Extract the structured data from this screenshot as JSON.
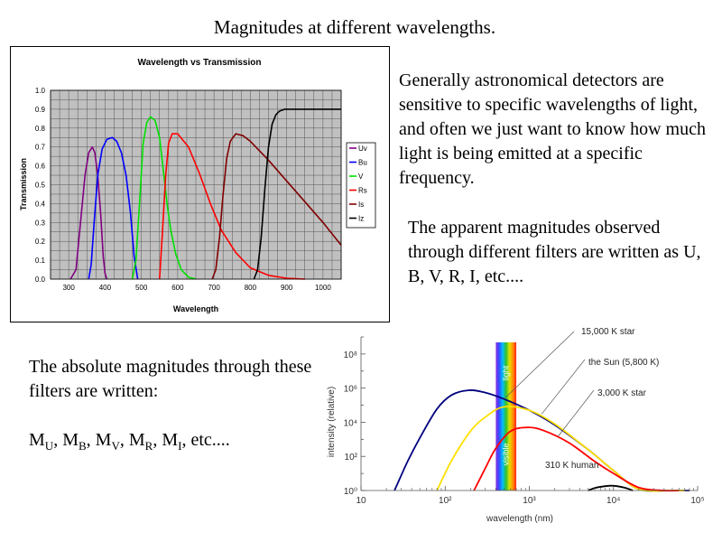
{
  "slide": {
    "title": "Magnitudes at different wavelengths.",
    "paragraph1": "Generally astronomical detectors are sensitive to specific wavelengths of light, and often we just want to know how much light is being emitted at a specific frequency.",
    "paragraph2": "The apparent magnitudes observed through different filters are written as U, B, V, R, I, etc....",
    "paragraph3": "The absolute magnitudes through these filters are written:",
    "magnitudes": {
      "M": "M",
      "subscripts": [
        "U",
        "B",
        "V",
        "R",
        "I"
      ],
      "sep": ",",
      "etc": "etc...."
    }
  },
  "colors": {
    "plot_bg": "#c0c0c0",
    "grid": "#555555",
    "U": "#800080",
    "B": "#0000ff",
    "V": "#00e000",
    "R": "#ff0000",
    "I": "#800000",
    "Z": "#000000",
    "star15000": "#000080",
    "sun": "#ffe000",
    "star3000": "#ff0000",
    "human": "#000000"
  },
  "chart_data": [
    {
      "type": "line",
      "title": "Wavelength vs Transmission",
      "xlabel": "Wavelength",
      "ylabel": "Transmission",
      "xlim": [
        250,
        1050
      ],
      "ylim": [
        0,
        1.0
      ],
      "xticks": [
        300,
        400,
        500,
        600,
        700,
        800,
        900,
        1000
      ],
      "xtick_labels": [
        "300",
        "400",
        "500",
        "600",
        "700",
        "800",
        "900",
        "1000"
      ],
      "yticks": [
        0,
        0.1,
        0.2,
        0.3,
        0.4,
        0.5,
        0.6,
        0.7,
        0.8,
        0.9,
        1.0
      ],
      "ytick_labels": [
        "0.0",
        "0.1",
        "0.2",
        "0.3",
        "0.4",
        "0.5",
        "0.6",
        "0.7",
        "0.8",
        "0.9",
        "1.0"
      ],
      "grid": true,
      "legend": "right",
      "series": [
        {
          "name": "Uv",
          "color": "#800080",
          "x": [
            305,
            320,
            335,
            345,
            355,
            365,
            372,
            380,
            388,
            395,
            400,
            405
          ],
          "y": [
            0,
            0.05,
            0.35,
            0.55,
            0.67,
            0.7,
            0.67,
            0.55,
            0.35,
            0.12,
            0.03,
            0
          ]
        },
        {
          "name": "Bu",
          "color": "#0000ff",
          "x": [
            355,
            362,
            370,
            380,
            392,
            405,
            420,
            432,
            445,
            458,
            470,
            480,
            490
          ],
          "y": [
            0,
            0.08,
            0.3,
            0.55,
            0.69,
            0.74,
            0.75,
            0.73,
            0.67,
            0.55,
            0.35,
            0.12,
            0
          ]
        },
        {
          "name": "V",
          "color": "#00e000",
          "x": [
            475,
            485,
            495,
            505,
            515,
            525,
            538,
            550,
            562,
            572,
            582,
            595,
            610,
            630,
            650
          ],
          "y": [
            0,
            0.1,
            0.4,
            0.72,
            0.83,
            0.86,
            0.84,
            0.75,
            0.55,
            0.38,
            0.25,
            0.13,
            0.05,
            0.01,
            0
          ]
        },
        {
          "name": "Rs",
          "color": "#ff0000",
          "x": [
            550,
            558,
            567,
            575,
            585,
            600,
            630,
            660,
            690,
            720,
            760,
            800,
            850,
            900,
            950
          ],
          "y": [
            0,
            0.25,
            0.55,
            0.72,
            0.77,
            0.77,
            0.7,
            0.56,
            0.4,
            0.26,
            0.14,
            0.06,
            0.02,
            0.005,
            0
          ]
        },
        {
          "name": "Is",
          "color": "#800000",
          "x": [
            695,
            705,
            715,
            725,
            735,
            745,
            760,
            780,
            800,
            850,
            900,
            950,
            1000,
            1050
          ],
          "y": [
            0,
            0.05,
            0.22,
            0.45,
            0.64,
            0.73,
            0.77,
            0.76,
            0.73,
            0.63,
            0.52,
            0.41,
            0.3,
            0.18
          ]
        },
        {
          "name": "Iz",
          "color": "#000000",
          "x": [
            810,
            820,
            830,
            840,
            850,
            860,
            870,
            880,
            895,
            920,
            960,
            1000,
            1050
          ],
          "y": [
            0,
            0.05,
            0.22,
            0.48,
            0.7,
            0.82,
            0.87,
            0.89,
            0.9,
            0.9,
            0.9,
            0.9,
            0.9
          ]
        }
      ]
    },
    {
      "type": "line",
      "xlabel": "wavelength (nm)",
      "ylabel": "intensity (relative)",
      "xscale": "log",
      "yscale": "log",
      "xlim": [
        10,
        100000
      ],
      "ylim": [
        1,
        1000000000
      ],
      "xtick_labels": [
        "10",
        "10²",
        "10³",
        "10⁴",
        "10⁵"
      ],
      "ytick_labels": [
        "10⁰",
        "10²",
        "10⁴",
        "10⁶",
        "10⁸"
      ],
      "band": {
        "label_top": "light",
        "label_bottom": "visible",
        "x_range": [
          400,
          700
        ]
      },
      "series": [
        {
          "name": "15,000 K star",
          "color": "#000080",
          "x": [
            25,
            35,
            50,
            80,
            120,
            193,
            300,
            500,
            1000,
            2000,
            5000,
            10000,
            20000,
            50000,
            80000
          ],
          "y": [
            1,
            40,
            1200,
            60000,
            400000,
            750000,
            550000,
            230000,
            50000,
            7000,
            250,
            15,
            1.2,
            1,
            1
          ]
        },
        {
          "name": "the Sun (5,800 K)",
          "color": "#ffe000",
          "x": [
            80,
            120,
            200,
            300,
            500,
            1000,
            2000,
            5000,
            10000,
            20000,
            50000,
            70000
          ],
          "y": [
            1,
            60,
            3000,
            20000,
            80000,
            50000,
            8000,
            250,
            15,
            1.2,
            1,
            1
          ]
        },
        {
          "name": "3,000 K star",
          "color": "#ff0000",
          "x": [
            220,
            300,
            400,
            600,
            966,
            1500,
            3000,
            6000,
            10000,
            20000,
            40000,
            60000
          ],
          "y": [
            1,
            20,
            300,
            3000,
            5000,
            3200,
            600,
            50,
            10,
            1.5,
            1,
            1
          ]
        },
        {
          "name": "310 K human",
          "color": "#000000",
          "x": [
            5000,
            6000,
            8000,
            9350,
            11000,
            14000,
            17000
          ],
          "y": [
            1,
            1.4,
            1.8,
            1.9,
            1.8,
            1.4,
            1
          ]
        }
      ]
    }
  ]
}
